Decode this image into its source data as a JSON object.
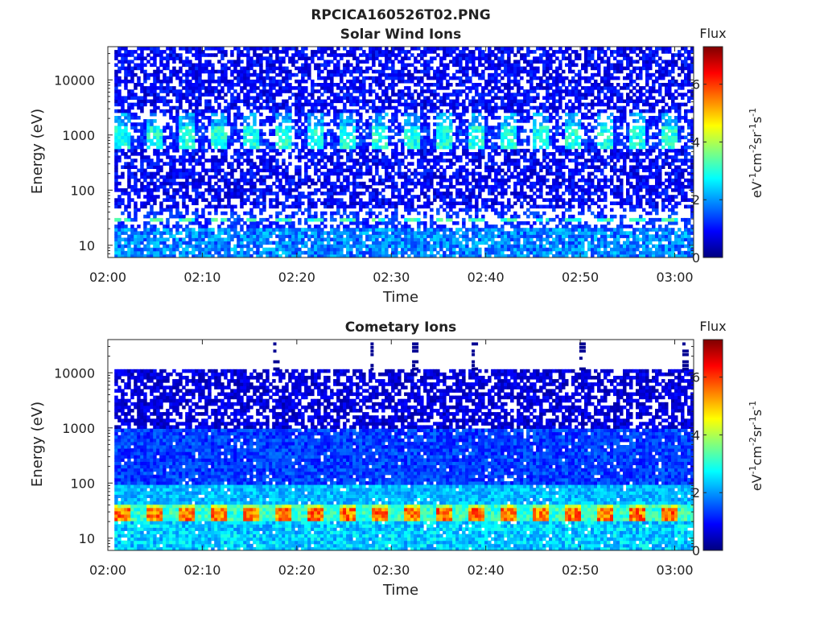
{
  "figure": {
    "title": "RPCICA160526T02.PNG"
  },
  "colorscale": {
    "name": "jet",
    "stops": [
      "#00007f",
      "#0000ff",
      "#007fff",
      "#00ffff",
      "#7fff7f",
      "#ffff00",
      "#ff7f00",
      "#ff0000",
      "#7f0000"
    ]
  },
  "chart_data": [
    {
      "type": "heatmap",
      "title": "Solar Wind Ions",
      "xlabel": "Time",
      "ylabel": "Energy (eV)",
      "y_scale": "log",
      "xlim": [
        "02:00",
        "03:02"
      ],
      "ylim": [
        6,
        40000
      ],
      "x_ticks": [
        "02:00",
        "02:10",
        "02:20",
        "02:30",
        "02:40",
        "02:50",
        "03:00"
      ],
      "y_ticks": [
        "10",
        "100",
        "1000",
        "10000"
      ],
      "colorbar": {
        "label": "Flux",
        "unit_label": [
          "eV",
          "-1",
          "cm",
          "-2",
          "sr",
          "-1",
          "s",
          "-1"
        ],
        "range": [
          0,
          7.3
        ],
        "ticks": [
          "0",
          "2",
          "4",
          "6"
        ]
      },
      "features": [
        {
          "band": "solar wind peak",
          "energy_range": [
            600,
            1400
          ],
          "flux": 3.0,
          "pattern": "periodic ~3.4 min"
        },
        {
          "band": "low energy band",
          "energy_range": [
            26,
            33
          ],
          "flux": 3.2,
          "pattern": "periodic"
        },
        {
          "band": "background",
          "energy_range": [
            100,
            40000
          ],
          "flux": 1.0,
          "pattern": "sparse"
        },
        {
          "band": "lowest energies",
          "energy_range": [
            6,
            22
          ],
          "flux": 1.6,
          "pattern": "dense"
        }
      ]
    },
    {
      "type": "heatmap",
      "title": "Cometary Ions",
      "xlabel": "Time",
      "ylabel": "Energy (eV)",
      "y_scale": "log",
      "xlim": [
        "02:00",
        "03:02"
      ],
      "ylim": [
        6,
        40000
      ],
      "x_ticks": [
        "02:00",
        "02:10",
        "02:20",
        "02:30",
        "02:40",
        "02:50",
        "03:00"
      ],
      "y_ticks": [
        "10",
        "100",
        "1000",
        "10000"
      ],
      "colorbar": {
        "label": "Flux",
        "unit_label": [
          "eV",
          "-1",
          "cm",
          "-2",
          "sr",
          "-1",
          "s",
          "-1"
        ],
        "range": [
          0,
          7.3
        ],
        "ticks": [
          "0",
          "2",
          "4",
          "6"
        ]
      },
      "features": [
        {
          "band": "peak cometary ions",
          "energy_range": [
            20,
            40
          ],
          "flux": 6.0,
          "pattern": "periodic ~3.4 min"
        },
        {
          "band": "mid energies",
          "energy_range": [
            50,
            1000
          ],
          "flux": 2.2,
          "pattern": "gradient"
        },
        {
          "band": "upper cutoff",
          "energy_range": [
            1000,
            11000
          ],
          "flux": 0.8,
          "pattern": "sparse"
        },
        {
          "band": "high energy spikes",
          "times": [
            "02:17",
            "02:28",
            "02:32",
            "02:38",
            "02:50",
            "03:01"
          ],
          "energy_range": [
            11000,
            40000
          ],
          "flux": 0.3
        }
      ]
    }
  ]
}
